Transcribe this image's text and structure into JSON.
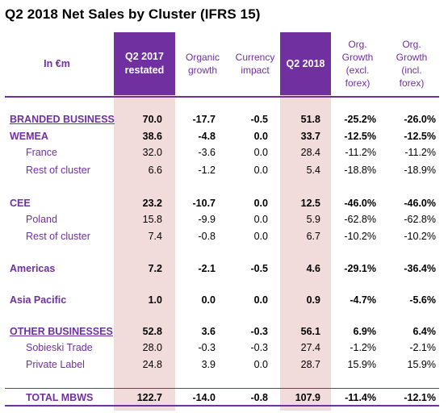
{
  "title": "Q2 2018 Net Sales by Cluster (IFRS 15)",
  "header": {
    "unit": "In €m",
    "q2_2017": "Q2 2017\nrestated",
    "organic": "Organic\ngrowth",
    "currency": "Currency\nimpact",
    "q2_2018": "Q2 2018",
    "org_excl": "Org.\nGrowth\n(excl.\nforex)",
    "org_incl": "Org.\nGrowth\n(incl.\nforex)"
  },
  "rows": [
    {
      "label": "BRANDED BUSINESS",
      "q2_2017": "70.0",
      "organic": "-17.7",
      "currency": "-0.5",
      "q2_2018": "51.8",
      "org_excl": "-25.2%",
      "org_incl": "-26.0%"
    },
    {
      "label": "WEMEA",
      "q2_2017": "38.6",
      "organic": "-4.8",
      "currency": "0.0",
      "q2_2018": "33.7",
      "org_excl": "-12.5%",
      "org_incl": "-12.5%"
    },
    {
      "label": "France",
      "q2_2017": "32.0",
      "organic": "-3.6",
      "currency": "0.0",
      "q2_2018": "28.4",
      "org_excl": "-11.2%",
      "org_incl": "-11.2%"
    },
    {
      "label": "Rest of cluster",
      "q2_2017": "6.6",
      "organic": "-1.2",
      "currency": "0.0",
      "q2_2018": "5.4",
      "org_excl": "-18.8%",
      "org_incl": "-18.9%"
    },
    {
      "label": "CEE",
      "q2_2017": "23.2",
      "organic": "-10.7",
      "currency": "0.0",
      "q2_2018": "12.5",
      "org_excl": "-46.0%",
      "org_incl": "-46.0%"
    },
    {
      "label": "Poland",
      "q2_2017": "15.8",
      "organic": "-9.9",
      "currency": "0.0",
      "q2_2018": "5.9",
      "org_excl": "-62.8%",
      "org_incl": "-62.8%"
    },
    {
      "label": "Rest of cluster",
      "q2_2017": "7.4",
      "organic": "-0.8",
      "currency": "0.0",
      "q2_2018": "6.7",
      "org_excl": "-10.2%",
      "org_incl": "-10.2%"
    },
    {
      "label": "Americas",
      "q2_2017": "7.2",
      "organic": "-2.1",
      "currency": "-0.5",
      "q2_2018": "4.6",
      "org_excl": "-29.1%",
      "org_incl": "-36.4%"
    },
    {
      "label": "Asia Pacific",
      "q2_2017": "1.0",
      "organic": "0.0",
      "currency": "0.0",
      "q2_2018": "0.9",
      "org_excl": "-4.7%",
      "org_incl": "-5.6%"
    },
    {
      "label": "OTHER BUSINESSES",
      "q2_2017": "52.8",
      "organic": "3.6",
      "currency": "-0.3",
      "q2_2018": "56.1",
      "org_excl": "6.9%",
      "org_incl": "6.4%"
    },
    {
      "label": "Sobieski Trade",
      "q2_2017": "28.0",
      "organic": "-0.3",
      "currency": "-0.3",
      "q2_2018": "27.4",
      "org_excl": "-1.2%",
      "org_incl": "-2.1%"
    },
    {
      "label": "Private Label",
      "q2_2017": "24.8",
      "organic": "3.9",
      "currency": "0.0",
      "q2_2018": "28.7",
      "org_excl": "15.9%",
      "org_incl": "15.9%"
    },
    {
      "label": "TOTAL MBWS",
      "q2_2017": "122.7",
      "organic": "-14.0",
      "currency": "-0.8",
      "q2_2018": "107.9",
      "org_excl": "-11.4%",
      "org_incl": "-12.1%"
    }
  ],
  "colors": {
    "accent": "#7030a0",
    "shade": "#f2dcdb"
  }
}
